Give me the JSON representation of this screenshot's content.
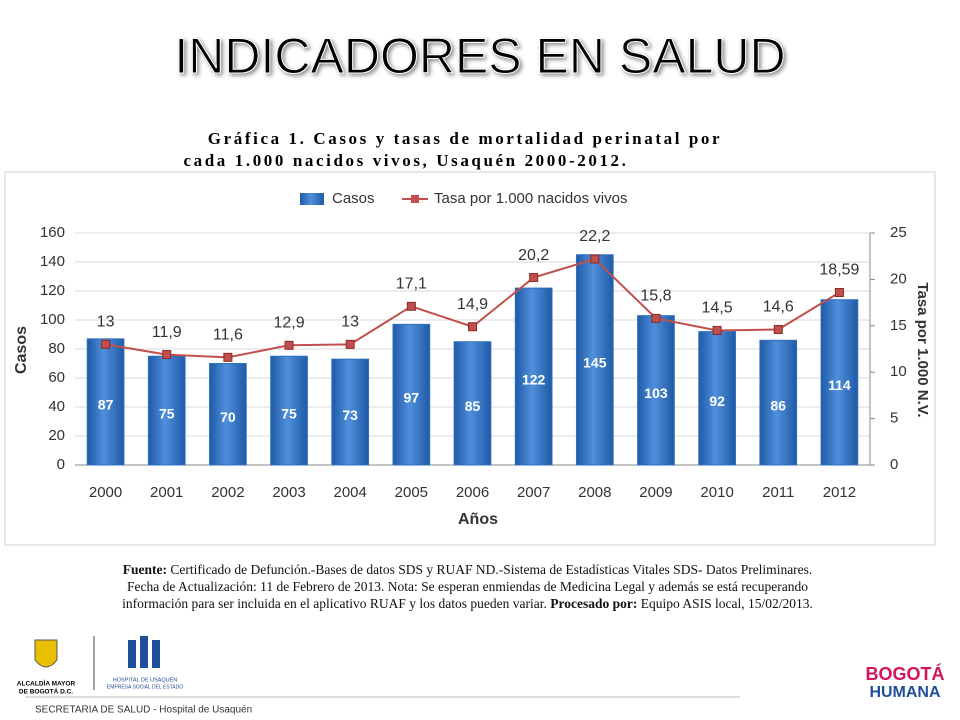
{
  "slide": {
    "title": "INDICADORES EN SALUD",
    "caption": [
      "Gráfica 1. Casos y tasas de mortalidad perinatal por",
      "cada 1.000 nacidos vivos, Usaquén 2000-2012."
    ],
    "source": {
      "label": "Fuente:",
      "line1": "Certificado de Defunción.-Bases de datos SDS y RUAF ND.-Sistema de Estadísticas Vitales SDS- Datos Preliminares.",
      "line2": "Fecha de Actualización: 11 de Febrero de 2013. Nota: Se esperan enmiendas de Medicina Legal y además se está recuperando",
      "line3": "información para ser incluida en el aplicativo RUAF y los datos pueden variar.",
      "processed_label": "Procesado por:",
      "processed_text": "Equipo ASIS local, 15/02/2013."
    },
    "logo_left": [
      "ALCALDÍA MAYOR",
      "DE BOGOTÁ D.C."
    ],
    "logo_mid": [
      "HOSPITAL DE USAQUÉN",
      "EMPRESA SOCIAL DEL ESTADO"
    ],
    "logo_right": [
      "BOGOTÁ",
      "HUMANA"
    ],
    "footer": "SECRETARIA DE SALUD - Hospital de Usaquén"
  },
  "chart_data": {
    "type": "bar",
    "x_label": "Años",
    "y_label": "Casos",
    "y2_label": "Tasa por 1.000 N.V.",
    "categories": [
      "2000",
      "2001",
      "2002",
      "2003",
      "2004",
      "2005",
      "2006",
      "2007",
      "2008",
      "2009",
      "2010",
      "2011",
      "2012"
    ],
    "series": [
      {
        "name": "Casos",
        "type": "bar",
        "color": "#2f6fbf",
        "values": [
          87,
          75,
          70,
          75,
          73,
          97,
          85,
          122,
          145,
          103,
          92,
          86,
          114
        ]
      },
      {
        "name": "Tasa por 1.000 nacidos vivos",
        "type": "line",
        "axis": "y2",
        "color": "#c0504d",
        "values": [
          13,
          11.9,
          11.6,
          12.9,
          13,
          17.1,
          14.9,
          20.2,
          22.2,
          15.8,
          14.5,
          14.6,
          18.59
        ],
        "value_labels": [
          "13",
          "11,9",
          "11,6",
          "12,9",
          "13",
          "17,1",
          "14,9",
          "20,2",
          "22,2",
          "15,8",
          "14,5",
          "14,6",
          "18,59"
        ]
      }
    ],
    "ylim": [
      0,
      160
    ],
    "yticks": [
      0,
      20,
      40,
      60,
      80,
      100,
      120,
      140,
      160
    ],
    "y2lim": [
      0,
      25
    ],
    "y2ticks": [
      0,
      5,
      10,
      15,
      20,
      25
    ],
    "grid": true,
    "legend": "top"
  }
}
